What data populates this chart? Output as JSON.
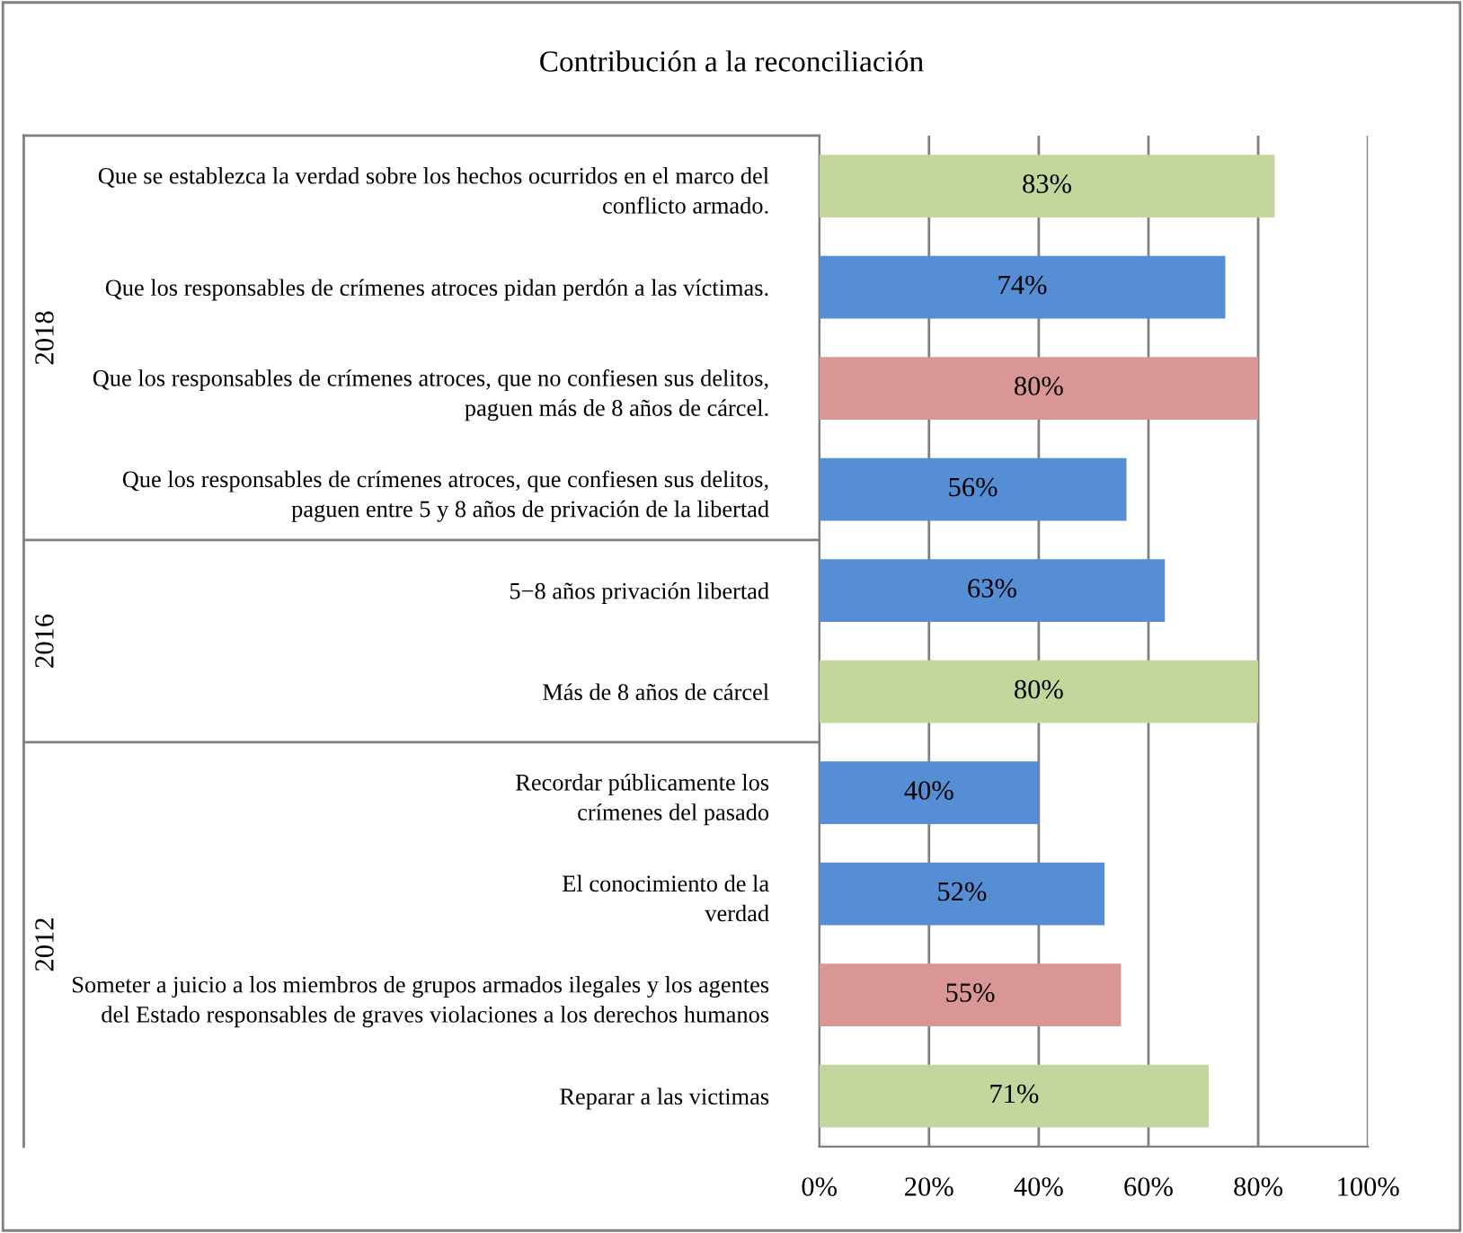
{
  "chart_data": {
    "type": "bar",
    "orientation": "horizontal",
    "title": "Contribución a la reconciliación",
    "categories": [
      "Que se establezca la verdad sobre los hechos ocurridos en el marco del\nconflicto armado.",
      "Que los responsables de crímenes atroces pidan perdón a las víctimas.",
      "Que los responsables de crímenes atroces, que no confiesen sus delitos,\npaguen más de 8 años de cárcel.",
      "Que los responsables de crímenes atroces, que confiesen sus delitos,\npaguen entre 5 y 8 años de privación de la libertad",
      "5−8 años privación libertad",
      "Más de 8 años de cárcel",
      "Recordar públicamente los\ncrímenes del pasado",
      "El conocimiento de la\nverdad",
      "Someter a juicio a los miembros de grupos armados ilegales y los agentes\ndel Estado responsables de graves violaciones a los derechos humanos",
      "Reparar a las victimas"
    ],
    "values": [
      83,
      74,
      80,
      56,
      63,
      80,
      40,
      52,
      55,
      71
    ],
    "colors": [
      "#c3d69b",
      "#558ed5",
      "#d99694",
      "#558ed5",
      "#558ed5",
      "#c3d69b",
      "#558ed5",
      "#558ed5",
      "#d99694",
      "#c3d69b"
    ],
    "value_labels": [
      "83%",
      "74%",
      "80%",
      "56%",
      "63%",
      "80%",
      "40%",
      "52%",
      "55%",
      "71%"
    ],
    "annotations": [
      "2018",
      "2016",
      "2012"
    ],
    "xlim": [
      0,
      100
    ],
    "xticks": [
      {
        "value": 0,
        "label": "0%"
      },
      {
        "value": 20,
        "label": "20%"
      },
      {
        "value": 40,
        "label": "40%"
      },
      {
        "value": 60,
        "label": "60%"
      },
      {
        "value": 80,
        "label": "80%"
      },
      {
        "value": 100,
        "label": "100%"
      }
    ],
    "grid": "x"
  }
}
